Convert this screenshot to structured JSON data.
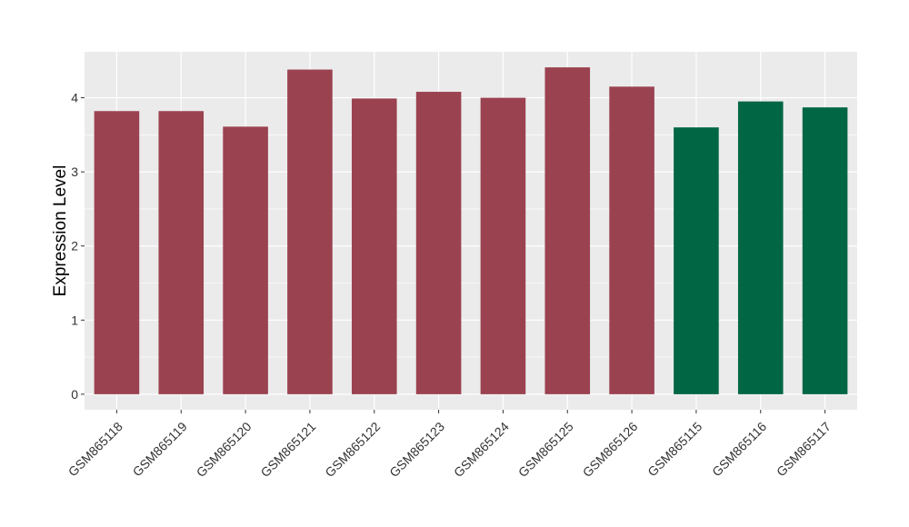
{
  "chart_data": {
    "type": "bar",
    "title": "",
    "xlabel": "",
    "ylabel": "Expression Level",
    "categories": [
      "GSM865118",
      "GSM865119",
      "GSM865120",
      "GSM865121",
      "GSM865122",
      "GSM865123",
      "GSM865124",
      "GSM865125",
      "GSM865126",
      "GSM865115",
      "GSM865116",
      "GSM865117"
    ],
    "values": [
      3.82,
      3.82,
      3.61,
      4.38,
      3.99,
      4.08,
      4.0,
      4.41,
      4.15,
      3.6,
      3.95,
      3.87
    ],
    "bar_colors": [
      "#9B4250",
      "#9B4250",
      "#9B4250",
      "#9B4250",
      "#9B4250",
      "#9B4250",
      "#9B4250",
      "#9B4250",
      "#9B4250",
      "#006644",
      "#006644",
      "#006644"
    ],
    "ylim": [
      -0.21,
      4.62
    ],
    "yticks": [
      0,
      1,
      2,
      3,
      4
    ],
    "grid": true,
    "panel_background": "#EBEBEB",
    "grid_color": "#FFFFFF"
  }
}
